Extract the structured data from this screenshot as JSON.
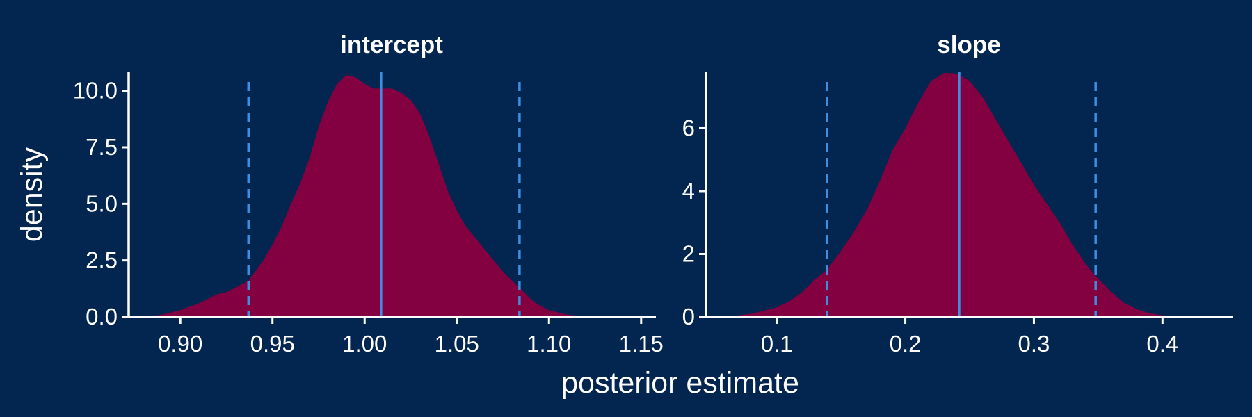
{
  "theme": {
    "background": "#02264f",
    "fill": "#830041",
    "median_line": "#3e8ee0",
    "interval_line": "#3e8ee0",
    "axis": "#ffffff",
    "text": "#ffffff"
  },
  "chart_data": [
    {
      "type": "area",
      "title": "intercept",
      "xlabel": "posterior estimate",
      "ylabel": "density",
      "xlim": [
        0.872,
        1.158
      ],
      "ylim": [
        0,
        10.85
      ],
      "x_ticks": [
        0.9,
        0.95,
        1.0,
        1.05,
        1.1,
        1.15
      ],
      "x_tick_labels": [
        "0.90",
        "0.95",
        "1.00",
        "1.05",
        "1.10",
        "1.15"
      ],
      "y_ticks": [
        0,
        2.5,
        5.0,
        7.5,
        10.0
      ],
      "y_tick_labels": [
        "0.0",
        "2.5",
        "5.0",
        "7.5",
        "10.0"
      ],
      "median": 1.009,
      "interval": [
        0.937,
        1.084
      ],
      "density": {
        "x": [
          0.88,
          0.89,
          0.9,
          0.91,
          0.92,
          0.925,
          0.93,
          0.937,
          0.945,
          0.95,
          0.955,
          0.96,
          0.965,
          0.97,
          0.975,
          0.98,
          0.985,
          0.99,
          0.995,
          1.0,
          1.005,
          1.009,
          1.015,
          1.02,
          1.025,
          1.03,
          1.035,
          1.04,
          1.045,
          1.05,
          1.055,
          1.06,
          1.065,
          1.07,
          1.075,
          1.08,
          1.084,
          1.09,
          1.095,
          1.1,
          1.11,
          1.12,
          1.13
        ],
        "y": [
          0.0,
          0.1,
          0.3,
          0.6,
          1.0,
          1.1,
          1.3,
          1.6,
          2.5,
          3.2,
          4.0,
          5.0,
          5.9,
          7.0,
          8.4,
          9.5,
          10.3,
          10.7,
          10.6,
          10.3,
          10.1,
          10.1,
          10.1,
          9.9,
          9.6,
          9.0,
          8.0,
          6.8,
          5.6,
          4.7,
          4.0,
          3.5,
          3.0,
          2.5,
          2.0,
          1.6,
          1.3,
          0.8,
          0.5,
          0.3,
          0.1,
          0.03,
          0.0
        ]
      }
    },
    {
      "type": "area",
      "title": "slope",
      "xlabel": "posterior estimate",
      "ylabel": "",
      "xlim": [
        0.045,
        0.455
      ],
      "ylim": [
        0,
        7.8
      ],
      "x_ticks": [
        0.1,
        0.2,
        0.3,
        0.4
      ],
      "x_tick_labels": [
        "0.1",
        "0.2",
        "0.3",
        "0.4"
      ],
      "y_ticks": [
        0,
        2,
        4,
        6
      ],
      "y_tick_labels": [
        "0",
        "2",
        "4",
        "6"
      ],
      "median": 0.242,
      "interval": [
        0.139,
        0.348
      ],
      "density": {
        "x": [
          0.06,
          0.08,
          0.1,
          0.11,
          0.12,
          0.13,
          0.139,
          0.15,
          0.16,
          0.17,
          0.18,
          0.19,
          0.2,
          0.21,
          0.22,
          0.23,
          0.237,
          0.242,
          0.25,
          0.26,
          0.27,
          0.28,
          0.29,
          0.3,
          0.31,
          0.32,
          0.33,
          0.34,
          0.348,
          0.36,
          0.37,
          0.38,
          0.39,
          0.4,
          0.42,
          0.44
        ],
        "y": [
          0.0,
          0.1,
          0.3,
          0.5,
          0.8,
          1.2,
          1.5,
          2.1,
          2.7,
          3.4,
          4.3,
          5.3,
          6.0,
          6.8,
          7.5,
          7.75,
          7.75,
          7.7,
          7.5,
          7.0,
          6.3,
          5.6,
          4.9,
          4.2,
          3.6,
          3.0,
          2.3,
          1.7,
          1.3,
          0.8,
          0.45,
          0.25,
          0.12,
          0.05,
          0.01,
          0.0
        ]
      }
    }
  ]
}
